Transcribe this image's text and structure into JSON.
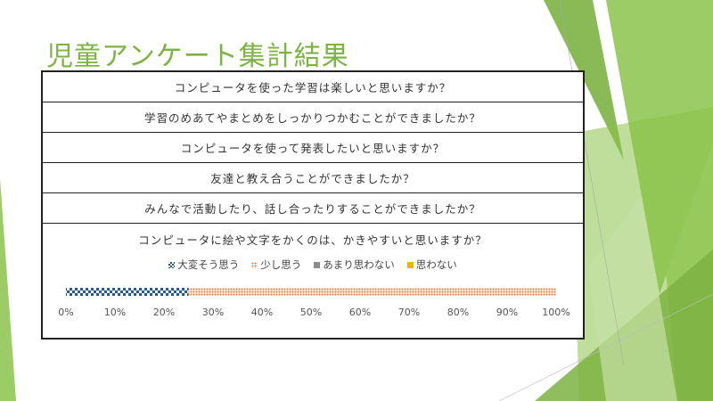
{
  "slide": {
    "title": "児童アンケート集計結果"
  },
  "questions": [
    "コンピュータを使った学習は楽しいと思いますか？",
    "学習のめあてやまとめをしっかりつかむことができましたか？",
    "コンピュータを使って発表したいと思いますか？",
    "友達と教え合うことができましたか？",
    "みんなで活動したり、話し合ったりすることができましたか？"
  ],
  "chart_data": {
    "type": "bar",
    "orientation": "horizontal",
    "stacked": true,
    "percent": true,
    "title": "コンピュータに絵や文字をかくのは、かきやすいと思いますか？",
    "categories": [
      ""
    ],
    "series": [
      {
        "name": "大変そう思う",
        "values": [
          25
        ],
        "color": "#1f5c99",
        "pattern": "checker"
      },
      {
        "name": "少し思う",
        "values": [
          75
        ],
        "color": "#e07b39",
        "pattern": "dots"
      },
      {
        "name": "あまり思わない",
        "values": [
          0
        ],
        "color": "#8c8c8c",
        "pattern": "solid"
      },
      {
        "name": "思わない",
        "values": [
          0
        ],
        "color": "#f0b400",
        "pattern": "solid"
      }
    ],
    "xlim": [
      0,
      100
    ],
    "x_ticks": [
      "0%",
      "10%",
      "20%",
      "30%",
      "40%",
      "50%",
      "60%",
      "70%",
      "80%",
      "90%",
      "100%"
    ],
    "legend_position": "top",
    "grid": false
  }
}
